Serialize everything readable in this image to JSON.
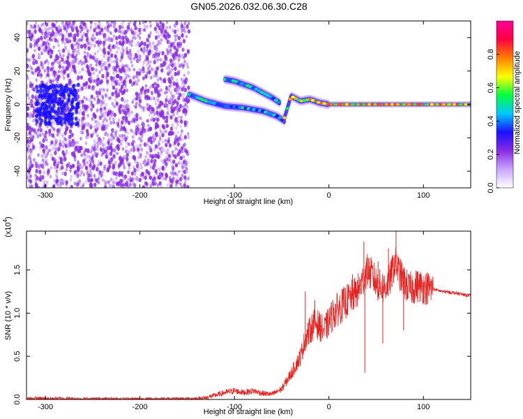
{
  "figure": {
    "title": "GN05.2026.032.06.30.C28"
  },
  "colors": {
    "background": "#ffffff",
    "spectrogram_base": "#7a1ff0",
    "spectrogram_ridge_center": "#ff3a3a",
    "snr_line": "#e8201e",
    "frame": "#000000"
  },
  "chart_data": [
    {
      "type": "heatmap",
      "name": "spectrogram",
      "xlabel": "Height of straight line (km)",
      "ylabel": "Frequency (Hz)",
      "xlim": [
        -320,
        150
      ],
      "ylim": [
        -50,
        50
      ],
      "x_ticks": [
        -300,
        -200,
        -100,
        0,
        100
      ],
      "x_tick_labels": [
        "-300",
        "-200",
        "-100",
        "0",
        "100"
      ],
      "y_ticks": [
        -40,
        -20,
        0,
        20,
        40
      ],
      "y_tick_labels": [
        "-40",
        "-20",
        "0",
        "20",
        "40"
      ],
      "grid": false,
      "colorbar": {
        "label": "Normalized spectral amplitude",
        "ticks": [
          0.0,
          0.2,
          0.4,
          0.6,
          0.8
        ],
        "tick_labels": [
          "0.0",
          "0.2",
          "0.4",
          "0.6",
          "0.8"
        ],
        "range": [
          0,
          1
        ],
        "colormap": [
          "#ffffff",
          "#c9a6ff",
          "#8a2be2",
          "#1a10ff",
          "#00c8ff",
          "#00ff40",
          "#ffff00",
          "#ff8000",
          "#ff0040",
          "#ff0099"
        ]
      },
      "noise_region": {
        "x_range": [
          -320,
          -148
        ],
        "frequency_range": [
          -50,
          50
        ],
        "amplitude_range": [
          0.05,
          0.2
        ]
      },
      "ridges": [
        {
          "x": [
            -148,
            -130,
            -110,
            -90,
            -70,
            -55,
            -47
          ],
          "y": [
            6,
            2,
            -1,
            -2,
            -4,
            -7,
            -10
          ],
          "amplitude": 0.45
        },
        {
          "x": [
            -110,
            -100,
            -90,
            -80,
            -70,
            -60,
            -52
          ],
          "y": [
            15,
            14,
            12,
            10,
            7,
            4,
            1
          ],
          "amplitude": 0.45
        },
        {
          "x": [
            -47,
            -40,
            -30,
            -20,
            -10,
            0,
            20,
            50,
            100,
            150
          ],
          "y": [
            -8,
            5,
            2,
            3,
            1,
            0,
            0,
            0,
            0,
            0
          ],
          "amplitude": 0.7
        }
      ]
    },
    {
      "type": "line",
      "name": "snr",
      "xlabel": "Height of straight line (km)",
      "ylabel": "SNR (10 * v/v)",
      "y_multiplier_label": "(x10",
      "y_multiplier_exponent": "4",
      "y_multiplier_close": ")",
      "xlim": [
        -320,
        150
      ],
      "ylim": [
        0,
        1.95
      ],
      "x_ticks": [
        -300,
        -200,
        -100,
        0,
        100
      ],
      "x_tick_labels": [
        "-300",
        "-200",
        "-100",
        "0",
        "100"
      ],
      "y_ticks": [
        0.0,
        0.5,
        1.0,
        1.5
      ],
      "y_tick_labels": [
        "0.0",
        "0.5",
        "1.0",
        "1.5"
      ],
      "grid": false,
      "series": [
        {
          "x": [
            -320,
            -300,
            -280,
            -260,
            -240,
            -220,
            -200,
            -180,
            -160,
            -140,
            -130,
            -120,
            -110,
            -100,
            -90,
            -80,
            -70,
            -60,
            -50,
            -40,
            -35,
            -30,
            -25,
            -20,
            -15,
            -10,
            -5,
            0,
            5,
            10,
            15,
            20,
            25,
            30,
            35,
            40,
            45,
            50,
            55,
            60,
            65,
            70,
            75,
            80,
            85,
            90,
            95,
            100,
            110,
            120,
            130,
            140,
            150
          ],
          "y": [
            0.01,
            0.01,
            0.01,
            0.005,
            0.005,
            0.005,
            0.005,
            0.005,
            0.005,
            0.01,
            0.02,
            0.05,
            0.08,
            0.1,
            0.08,
            0.1,
            0.07,
            0.06,
            0.12,
            0.3,
            0.4,
            0.5,
            0.7,
            0.8,
            0.9,
            0.85,
            0.8,
            0.9,
            1.0,
            1.05,
            1.1,
            1.15,
            1.2,
            1.25,
            1.35,
            1.5,
            1.45,
            1.35,
            1.3,
            1.3,
            1.4,
            1.6,
            1.45,
            1.35,
            1.28,
            1.3,
            1.32,
            1.3,
            1.28,
            1.25,
            1.24,
            1.22,
            1.2
          ],
          "spikes": [
            {
              "x": 37,
              "y": 1.83
            },
            {
              "x": 38,
              "y": 0.31
            },
            {
              "x": 63,
              "y": 1.75
            },
            {
              "x": 71,
              "y": 1.95
            },
            {
              "x": 57,
              "y": 0.65
            },
            {
              "x": 52,
              "y": 1.6
            },
            {
              "x": 25,
              "y": 1.45
            },
            {
              "x": -25,
              "y": 1.25
            },
            {
              "x": -15,
              "y": 1.15
            },
            {
              "x": 79,
              "y": 0.8
            }
          ]
        }
      ]
    }
  ]
}
